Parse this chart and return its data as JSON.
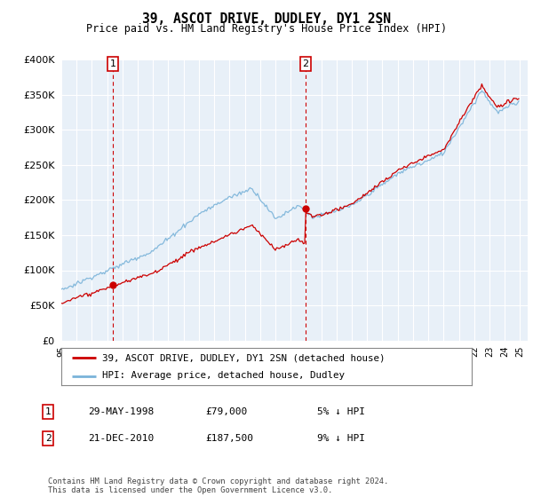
{
  "title": "39, ASCOT DRIVE, DUDLEY, DY1 2SN",
  "subtitle": "Price paid vs. HM Land Registry's House Price Index (HPI)",
  "ylim": [
    0,
    400000
  ],
  "yticks": [
    0,
    50000,
    100000,
    150000,
    200000,
    250000,
    300000,
    350000,
    400000
  ],
  "plot_bg": "#e8f0f8",
  "hpi_color": "#7ab3d9",
  "price_color": "#cc0000",
  "sale1_year": 1998.38,
  "sale1_price": 79000,
  "sale2_year": 2010.97,
  "sale2_price": 187500,
  "legend_label_red": "39, ASCOT DRIVE, DUDLEY, DY1 2SN (detached house)",
  "legend_label_blue": "HPI: Average price, detached house, Dudley",
  "footer": "Contains HM Land Registry data © Crown copyright and database right 2024.\nThis data is licensed under the Open Government Licence v3.0.",
  "table": [
    {
      "num": "1",
      "date": "29-MAY-1998",
      "price": "£79,000",
      "pct": "5% ↓ HPI"
    },
    {
      "num": "2",
      "date": "21-DEC-2010",
      "price": "£187,500",
      "pct": "9% ↓ HPI"
    }
  ]
}
